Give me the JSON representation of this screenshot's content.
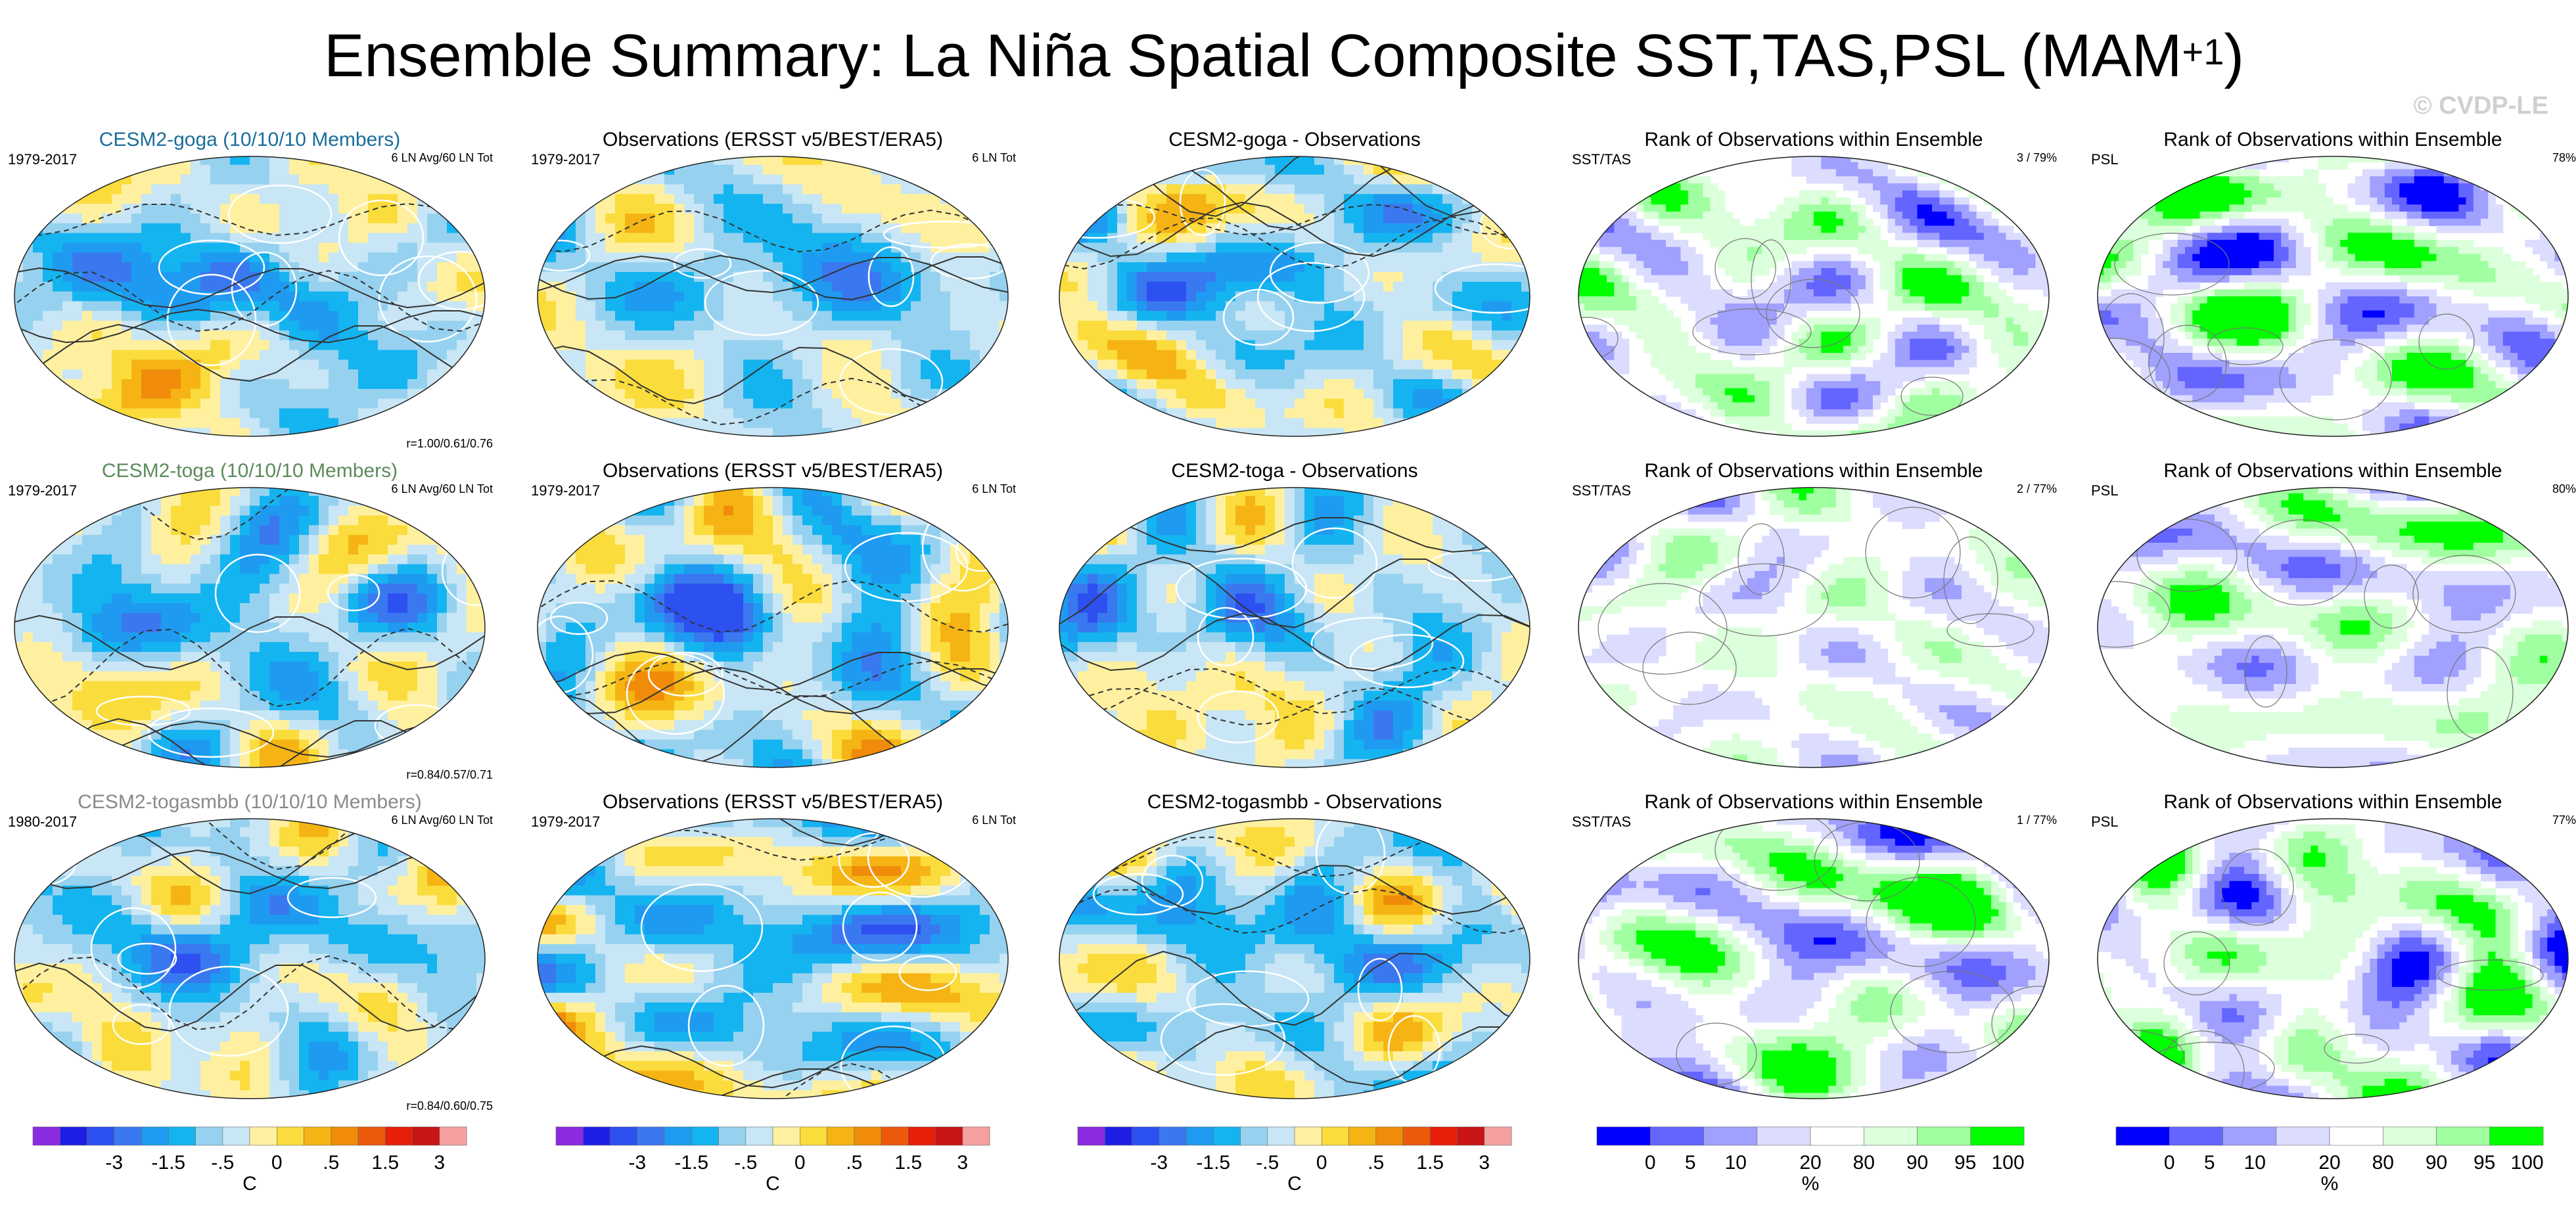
{
  "title": "Ensemble Summary: La Niña Spatial Composite SST,TAS,PSL (MAM",
  "title_sup": "+1",
  "title_close": ")",
  "copyright": "© CVDP-LE",
  "chart_data": {
    "type": "heatmap",
    "description_free": true,
    "rows": [
      {
        "ensemble": {
          "title": "CESM2-goga (10/10/10 Members)",
          "title_color": "#1a6e9a",
          "years": "1979-2017",
          "note": "6 LN Avg/60 LN Tot",
          "corr": "r=1.00/0.61/0.76"
        },
        "obs": {
          "title": "Observations (ERSST v5/BEST/ERA5)",
          "years": "1979-2017",
          "note": "6 LN Tot"
        },
        "diff": {
          "title": "CESM2-goga - Observations"
        },
        "rank_sst": {
          "title": "Rank of Observations within Ensemble",
          "label": "SST/TAS",
          "value": "3 /  79%"
        },
        "rank_psl": {
          "title": "Rank of Observations within Ensemble",
          "label": "PSL",
          "value": "78%"
        }
      },
      {
        "ensemble": {
          "title": "CESM2-toga (10/10/10 Members)",
          "title_color": "#5c8a5c",
          "years": "1979-2017",
          "note": "6 LN Avg/60 LN Tot",
          "corr": "r=0.84/0.57/0.71"
        },
        "obs": {
          "title": "Observations (ERSST v5/BEST/ERA5)",
          "years": "1979-2017",
          "note": "6 LN Tot"
        },
        "diff": {
          "title": "CESM2-toga - Observations"
        },
        "rank_sst": {
          "title": "Rank of Observations within Ensemble",
          "label": "SST/TAS",
          "value": "2 /  77%"
        },
        "rank_psl": {
          "title": "Rank of Observations within Ensemble",
          "label": "PSL",
          "value": "80%"
        }
      },
      {
        "ensemble": {
          "title": "CESM2-togasmbb (10/10/10 Members)",
          "title_color": "#8a8a8a",
          "years": "1980-2017",
          "note": "6 LN Avg/60 LN Tot",
          "corr": "r=0.84/0.60/0.75"
        },
        "obs": {
          "title": "Observations (ERSST v5/BEST/ERA5)",
          "years": "1979-2017",
          "note": "6 LN Tot"
        },
        "diff": {
          "title": "CESM2-togasmbb - Observations"
        },
        "rank_sst": {
          "title": "Rank of Observations within Ensemble",
          "label": "SST/TAS",
          "value": "1 /  77%"
        },
        "rank_psl": {
          "title": "Rank of Observations within Ensemble",
          "label": "PSL",
          "value": "77%"
        }
      }
    ],
    "temperature_colorbar": {
      "unit": "C",
      "tick_labels": [
        "-3",
        "-1.5",
        "-.5",
        "0",
        ".5",
        "1.5",
        "3"
      ],
      "colors": [
        "#8a2be2",
        "#1e1ee6",
        "#2d50f0",
        "#3a78f0",
        "#1e9bf0",
        "#14b4f0",
        "#96d2f0",
        "#c8e6f5",
        "#fff0a0",
        "#fadc3c",
        "#f5b414",
        "#f08c0a",
        "#eb5a0a",
        "#e61e0a",
        "#c81414",
        "#f5a0a0"
      ]
    },
    "rank_colorbar": {
      "unit": "%",
      "tick_labels": [
        "0",
        "5",
        "10",
        "20",
        "80",
        "90",
        "95",
        "100"
      ],
      "colors": [
        "#0000ff",
        "#6464ff",
        "#a0a0ff",
        "#dcdcff",
        "#ffffff",
        "#dcffdc",
        "#a0ffa0",
        "#00ff00"
      ]
    }
  }
}
